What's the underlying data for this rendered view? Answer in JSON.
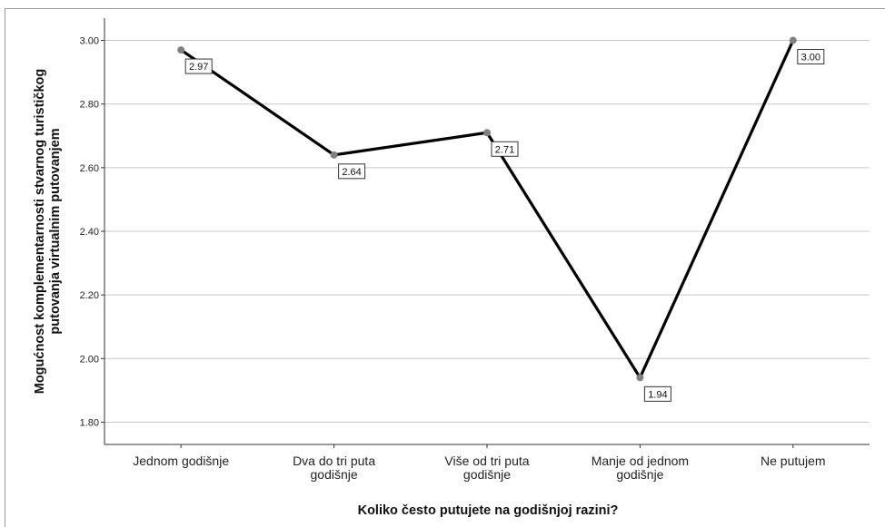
{
  "chart_data": {
    "type": "line",
    "title": "",
    "xlabel": "Koliko često putujete na godišnjoj razini?",
    "ylabel_lines": [
      "Mogućnost komplementarnosti stvarnog turističkog",
      "putovanja virtualnim putovanjem"
    ],
    "categories": [
      [
        "Jednom godišnje"
      ],
      [
        "Dva do tri puta",
        "godišnje"
      ],
      [
        "Više od tri puta",
        "godišnje"
      ],
      [
        "Manje od jednom",
        "godišnje"
      ],
      [
        "Ne putujem"
      ]
    ],
    "values": [
      2.97,
      2.64,
      2.71,
      1.94,
      3.0
    ],
    "data_labels": [
      "2.97",
      "2.64",
      "2.71",
      "1.94",
      "3.00"
    ],
    "yticks": [
      "1.80",
      "2.00",
      "2.20",
      "2.40",
      "2.60",
      "2.80",
      "3.00"
    ],
    "ylim": [
      1.73,
      3.07
    ],
    "grid": true,
    "line_color": "#000000",
    "marker_color": "#808080"
  }
}
